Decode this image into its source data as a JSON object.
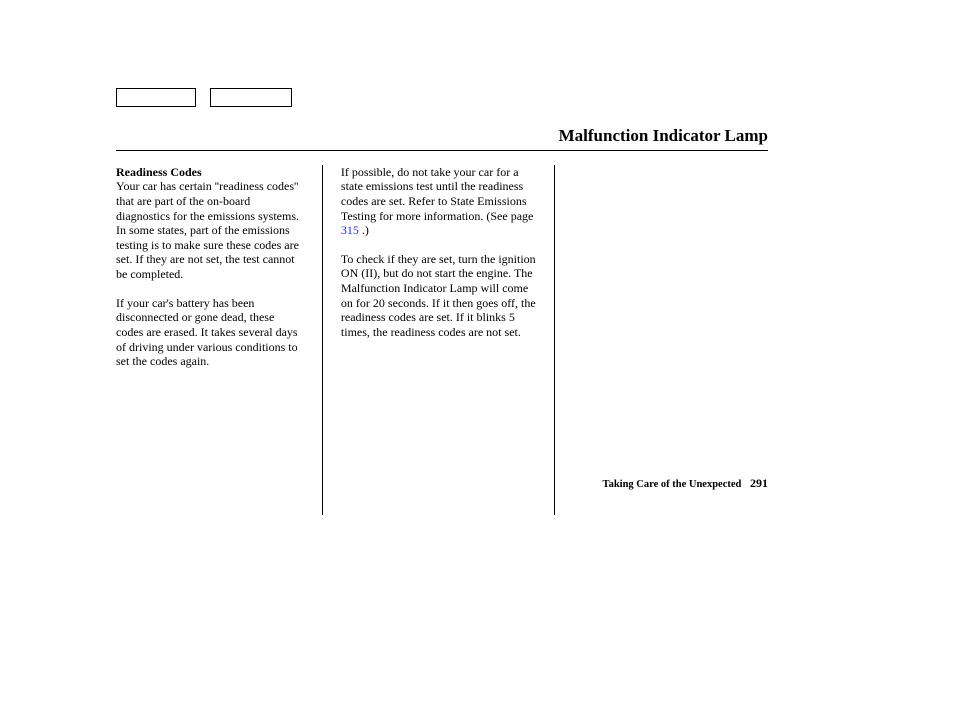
{
  "header": {
    "title": "Malfunction Indicator Lamp"
  },
  "col1": {
    "subhead": "Readiness Codes",
    "p1": "Your car has certain ''readiness codes'' that are part of the on-board diagnostics for the emissions systems. In some states, part of the emissions testing is to make sure these codes are set. If they are not set, the test cannot be completed.",
    "p2": "If your car's battery has been disconnected or gone dead, these codes are erased. It takes several days of driving under various conditions to set the codes again."
  },
  "col2": {
    "p1_a": "If possible, do not take your car for a state emissions test until the readiness codes are set. Refer to State Emissions Testing for more information. (See page ",
    "p1_link": "315",
    "p1_b": " .)",
    "p2": "To check if they are set, turn the ignition ON (II), but do not start the engine. The Malfunction Indicator Lamp will come on for 20 seconds. If it then goes off, the readiness codes are set. If it blinks 5 times, the readiness codes are not set."
  },
  "footer": {
    "section": "Taking Care of the Unexpected",
    "page": "291"
  }
}
